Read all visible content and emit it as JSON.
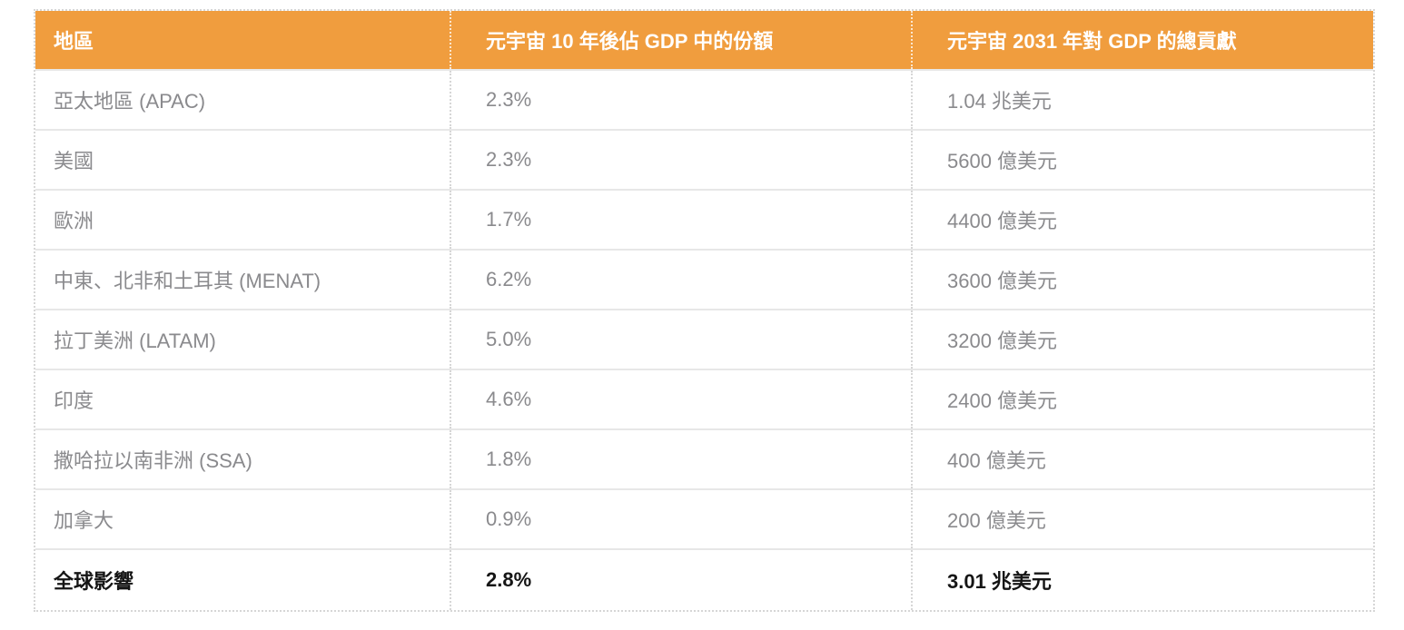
{
  "table": {
    "header": {
      "bg_color": "#F09D3E",
      "text_color": "#FFFFFF",
      "columns": [
        {
          "label": "地區"
        },
        {
          "label": "元宇宙 10 年後佔 GDP 中的份額"
        },
        {
          "label": "元宇宙 2031 年對 GDP 的總貢獻"
        }
      ]
    },
    "rows": [
      {
        "region": "亞太地區 (APAC)",
        "gdp_share": "2.3%",
        "gdp_contribution": "1.04 兆美元",
        "emphasis": false
      },
      {
        "region": "美國",
        "gdp_share": "2.3%",
        "gdp_contribution": "5600 億美元",
        "emphasis": false
      },
      {
        "region": "歐洲",
        "gdp_share": "1.7%",
        "gdp_contribution": "4400 億美元",
        "emphasis": false
      },
      {
        "region": "中東、北非和土耳其 (MENAT)",
        "gdp_share": "6.2%",
        "gdp_contribution": "3600 億美元",
        "emphasis": false
      },
      {
        "region": "拉丁美洲 (LATAM)",
        "gdp_share": "5.0%",
        "gdp_contribution": "3200 億美元",
        "emphasis": false
      },
      {
        "region": "印度",
        "gdp_share": "4.6%",
        "gdp_contribution": "2400 億美元",
        "emphasis": false
      },
      {
        "region": "撒哈拉以南非洲 (SSA)",
        "gdp_share": "1.8%",
        "gdp_contribution": "400 億美元",
        "emphasis": false
      },
      {
        "region": "加拿大",
        "gdp_share": "0.9%",
        "gdp_contribution": "200 億美元",
        "emphasis": false
      },
      {
        "region": "全球影響",
        "gdp_share": "2.8%",
        "gdp_contribution": "3.01 兆美元",
        "emphasis": true
      }
    ],
    "colors": {
      "body_text": "#8A8A8D",
      "emphasis_text": "#151515",
      "row_divider": "#E7E7E7",
      "dotted_border": "#D6D6D6"
    }
  },
  "chart_data": {
    "type": "table",
    "title": "",
    "columns": [
      "地區",
      "元宇宙 10 年後佔 GDP 中的份額",
      "元宇宙 2031 年對 GDP 的總貢獻"
    ],
    "rows": [
      [
        "亞太地區 (APAC)",
        "2.3%",
        "1.04 兆美元"
      ],
      [
        "美國",
        "2.3%",
        "5600 億美元"
      ],
      [
        "歐洲",
        "1.7%",
        "4400 億美元"
      ],
      [
        "中東、北非和土耳其 (MENAT)",
        "6.2%",
        "3600 億美元"
      ],
      [
        "拉丁美洲 (LATAM)",
        "5.0%",
        "3200 億美元"
      ],
      [
        "印度",
        "4.6%",
        "2400 億美元"
      ],
      [
        "撒哈拉以南非洲 (SSA)",
        "1.8%",
        "400 億美元"
      ],
      [
        "加拿大",
        "0.9%",
        "200 億美元"
      ],
      [
        "全球影響",
        "2.8%",
        "3.01 兆美元"
      ]
    ],
    "series": [
      {
        "name": "元宇宙 10 年後佔 GDP 中的份額 (%)",
        "values": [
          2.3,
          2.3,
          1.7,
          6.2,
          5.0,
          4.6,
          1.8,
          0.9,
          2.8
        ]
      },
      {
        "name": "元宇宙 2031 年對 GDP 的總貢獻 (十億美元)",
        "values": [
          1040,
          560,
          440,
          360,
          320,
          240,
          40,
          20,
          3010
        ]
      }
    ],
    "categories": [
      "亞太地區 (APAC)",
      "美國",
      "歐洲",
      "中東、北非和土耳其 (MENAT)",
      "拉丁美洲 (LATAM)",
      "印度",
      "撒哈拉以南非洲 (SSA)",
      "加拿大",
      "全球影響"
    ]
  }
}
